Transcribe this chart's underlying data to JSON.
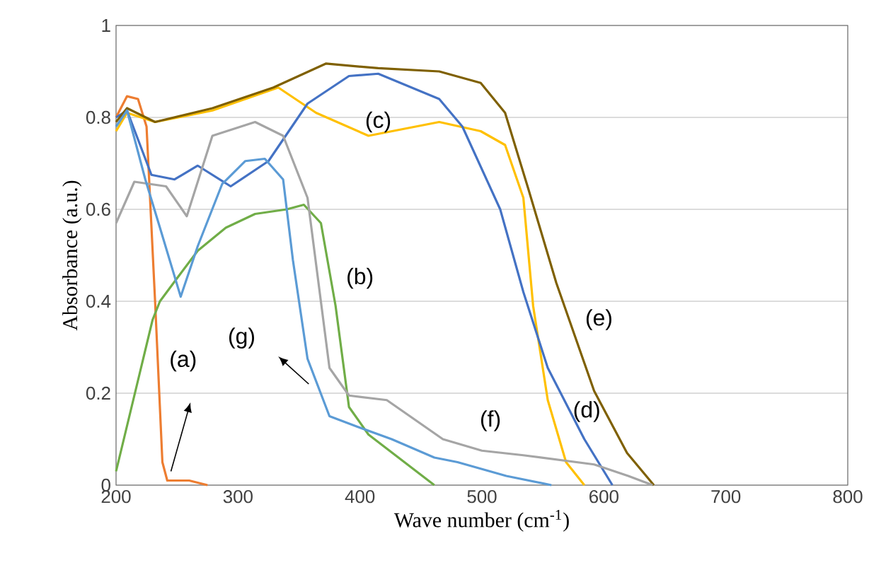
{
  "chart_data": {
    "type": "line",
    "xlabel": "Wave number (cm$^{-1}$)",
    "ylabel": "Absorbance (a.u.)",
    "xlim": [
      200,
      800
    ],
    "ylim": [
      0,
      1
    ],
    "xticks": [
      200,
      300,
      400,
      500,
      600,
      700,
      800
    ],
    "yticks": [
      0,
      0.2,
      0.4,
      0.6,
      0.8,
      1
    ],
    "grid": "y",
    "marker": "none",
    "line_style": "solid",
    "series": [
      {
        "color": "#ed7d31",
        "x": [
          200,
          209,
          218,
          225,
          232,
          238,
          242,
          260,
          275
        ],
        "values": [
          0.8,
          0.846,
          0.84,
          0.78,
          0.4,
          0.05,
          0.01,
          0.01,
          0
        ]
      },
      {
        "color": "#70ad47",
        "x": [
          200,
          220,
          230,
          236,
          250,
          267,
          290,
          314,
          340,
          354,
          368,
          380,
          391,
          407,
          461
        ],
        "values": [
          0.03,
          0.25,
          0.36,
          0.4,
          0.45,
          0.51,
          0.56,
          0.59,
          0.6,
          0.61,
          0.57,
          0.39,
          0.17,
          0.11,
          0
        ]
      },
      {
        "color": "#ffc000",
        "x": [
          200,
          209,
          232,
          279,
          333,
          364,
          407,
          465,
          499,
          519,
          534,
          542,
          554,
          569,
          584
        ],
        "values": [
          0.77,
          0.81,
          0.79,
          0.815,
          0.865,
          0.81,
          0.76,
          0.79,
          0.77,
          0.74,
          0.625,
          0.39,
          0.185,
          0.05,
          0
        ]
      },
      {
        "color": "#4472c4",
        "x": [
          200,
          209,
          229,
          248,
          267,
          294,
          325,
          357,
          391,
          415,
          465,
          484,
          515,
          534,
          554,
          584,
          607
        ],
        "values": [
          0.8,
          0.815,
          0.675,
          0.665,
          0.695,
          0.65,
          0.705,
          0.83,
          0.89,
          0.895,
          0.84,
          0.78,
          0.6,
          0.42,
          0.255,
          0.1,
          0
        ]
      },
      {
        "color": "#7f6000",
        "x": [
          200,
          209,
          232,
          279,
          329,
          372,
          415,
          465,
          499,
          519,
          538,
          561,
          592,
          619,
          641
        ],
        "values": [
          0.79,
          0.82,
          0.79,
          0.82,
          0.865,
          0.917,
          0.907,
          0.9,
          0.875,
          0.81,
          0.645,
          0.44,
          0.205,
          0.07,
          0
        ]
      },
      {
        "color": "#a5a5a5",
        "x": [
          200,
          215,
          241,
          258,
          279,
          314,
          337,
          357,
          375,
          391,
          422,
          468,
          500,
          534,
          592,
          620,
          640
        ],
        "values": [
          0.57,
          0.66,
          0.65,
          0.585,
          0.76,
          0.79,
          0.76,
          0.625,
          0.255,
          0.195,
          0.185,
          0.1,
          0.075,
          0.065,
          0.045,
          0.02,
          0
        ]
      },
      {
        "color": "#5b9bd5",
        "x": [
          200,
          209,
          224,
          236,
          253,
          267,
          287,
          306,
          322,
          337,
          345,
          357,
          375,
          398,
          426,
          461,
          480,
          520,
          557
        ],
        "values": [
          0.78,
          0.815,
          0.665,
          0.56,
          0.41,
          0.52,
          0.655,
          0.705,
          0.71,
          0.665,
          0.49,
          0.275,
          0.15,
          0.127,
          0.1,
          0.06,
          0.05,
          0.02,
          0
        ]
      }
    ],
    "annotations": [
      "(a)",
      "(b)",
      "(c)",
      "(d)",
      "(e)",
      "(f)",
      "(g)"
    ]
  }
}
